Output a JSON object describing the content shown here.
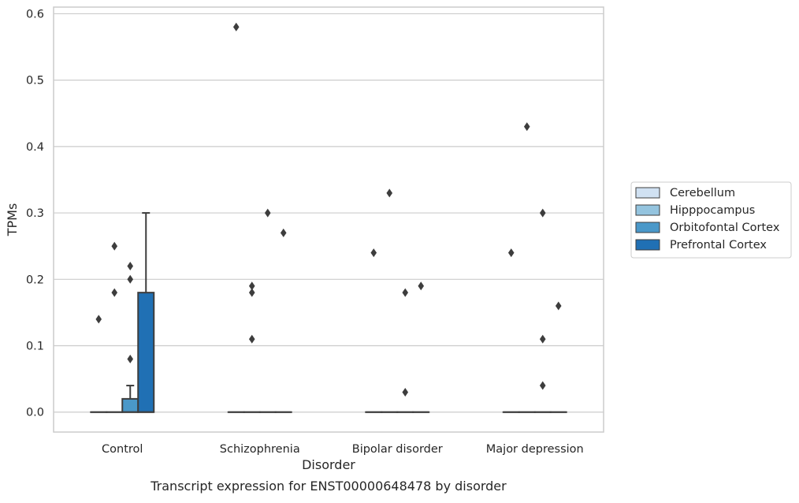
{
  "chart_data": {
    "type": "box",
    "caption": "Transcript expression for ENST00000648478 by disorder",
    "xlabel": "Disorder",
    "ylabel": "TPMs",
    "ylim": [
      -0.03,
      0.61
    ],
    "yticks": [
      0.0,
      0.1,
      0.2,
      0.3,
      0.4,
      0.5,
      0.6
    ],
    "ytick_labels": [
      "0.0",
      "0.1",
      "0.2",
      "0.3",
      "0.4",
      "0.5",
      "0.6"
    ],
    "grid": "horizontal",
    "legend_position": "right",
    "categories": [
      "Control",
      "Schizophrenia",
      "Bipolar disorder",
      "Major depression"
    ],
    "series": [
      {
        "name": "Cerebellum",
        "color": "#d0e1f2",
        "boxes": [
          {
            "category": "Control",
            "q1": 0,
            "median": 0,
            "q3": 0,
            "whisker_low": 0,
            "whisker_high": 0,
            "outliers": [
              0.14
            ]
          },
          {
            "category": "Schizophrenia",
            "q1": 0,
            "median": 0,
            "q3": 0,
            "whisker_low": 0,
            "whisker_high": 0,
            "outliers": [
              0.58
            ]
          },
          {
            "category": "Bipolar disorder",
            "q1": 0,
            "median": 0,
            "q3": 0,
            "whisker_low": 0,
            "whisker_high": 0,
            "outliers": [
              0.24
            ]
          },
          {
            "category": "Major depression",
            "q1": 0,
            "median": 0,
            "q3": 0,
            "whisker_low": 0,
            "whisker_high": 0,
            "outliers": [
              0.24
            ]
          }
        ]
      },
      {
        "name": "Hipppocampus",
        "color": "#94c4df",
        "boxes": [
          {
            "category": "Control",
            "q1": 0,
            "median": 0,
            "q3": 0,
            "whisker_low": 0,
            "whisker_high": 0,
            "outliers": [
              0.25,
              0.18
            ]
          },
          {
            "category": "Schizophrenia",
            "q1": 0,
            "median": 0,
            "q3": 0,
            "whisker_low": 0,
            "whisker_high": 0,
            "outliers": [
              0.19,
              0.18,
              0.11
            ]
          },
          {
            "category": "Bipolar disorder",
            "q1": 0,
            "median": 0,
            "q3": 0,
            "whisker_low": 0,
            "whisker_high": 0,
            "outliers": [
              0.33
            ]
          },
          {
            "category": "Major depression",
            "q1": 0,
            "median": 0,
            "q3": 0,
            "whisker_low": 0,
            "whisker_high": 0,
            "outliers": [
              0.43
            ]
          }
        ]
      },
      {
        "name": "Orbitofontal Cortex",
        "color": "#4a98c9",
        "boxes": [
          {
            "category": "Control",
            "q1": 0,
            "median": 0,
            "q3": 0.02,
            "whisker_low": 0,
            "whisker_high": 0.04,
            "outliers": [
              0.22,
              0.2,
              0.08
            ]
          },
          {
            "category": "Schizophrenia",
            "q1": 0,
            "median": 0,
            "q3": 0,
            "whisker_low": 0,
            "whisker_high": 0,
            "outliers": [
              0.3
            ]
          },
          {
            "category": "Bipolar disorder",
            "q1": 0,
            "median": 0,
            "q3": 0,
            "whisker_low": 0,
            "whisker_high": 0,
            "outliers": [
              0.18,
              0.03
            ]
          },
          {
            "category": "Major depression",
            "q1": 0,
            "median": 0,
            "q3": 0,
            "whisker_low": 0,
            "whisker_high": 0,
            "outliers": [
              0.3,
              0.11,
              0.04
            ]
          }
        ]
      },
      {
        "name": "Prefrontal Cortex",
        "color": "#2070b4",
        "boxes": [
          {
            "category": "Control",
            "q1": 0,
            "median": 0,
            "q3": 0.18,
            "whisker_low": 0,
            "whisker_high": 0.3,
            "outliers": []
          },
          {
            "category": "Schizophrenia",
            "q1": 0,
            "median": 0,
            "q3": 0,
            "whisker_low": 0,
            "whisker_high": 0,
            "outliers": [
              0.27
            ]
          },
          {
            "category": "Bipolar disorder",
            "q1": 0,
            "median": 0,
            "q3": 0,
            "whisker_low": 0,
            "whisker_high": 0,
            "outliers": [
              0.19
            ]
          },
          {
            "category": "Major depression",
            "q1": 0,
            "median": 0,
            "q3": 0,
            "whisker_low": 0,
            "whisker_high": 0,
            "outliers": [
              0.16
            ]
          }
        ]
      }
    ]
  }
}
